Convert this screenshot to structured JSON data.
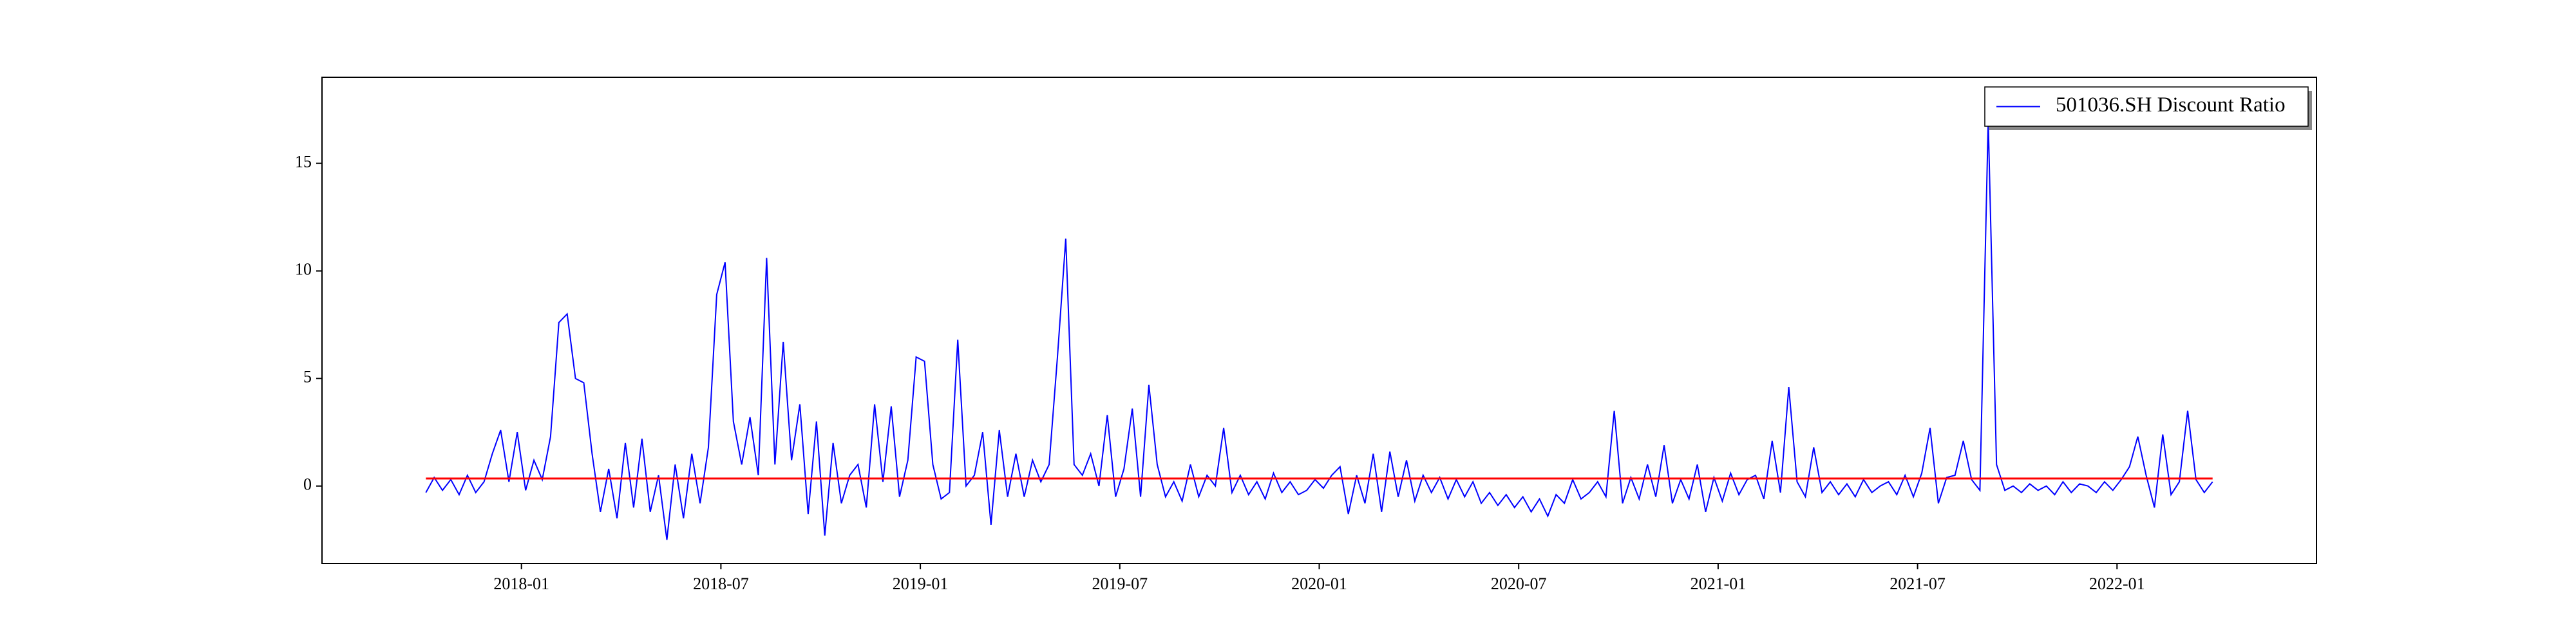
{
  "chart_data": {
    "type": "line",
    "x": [
      "2017-10",
      "2017-11",
      "2017-12",
      "2018-01",
      "2018-02",
      "2018-03",
      "2018-04",
      "2018-05",
      "2018-06",
      "2018-07",
      "2018-08",
      "2018-09",
      "2018-10",
      "2018-11",
      "2018-12",
      "2019-01",
      "2019-02",
      "2019-03",
      "2019-04",
      "2019-05",
      "2019-06",
      "2019-07",
      "2019-08",
      "2019-09",
      "2019-10",
      "2019-11",
      "2019-12",
      "2020-01",
      "2020-02",
      "2020-03",
      "2020-04",
      "2020-05",
      "2020-06",
      "2020-07",
      "2020-08",
      "2020-09",
      "2020-10",
      "2020-11",
      "2020-12",
      "2021-01",
      "2021-02",
      "2021-03",
      "2021-04",
      "2021-05",
      "2021-06",
      "2021-07",
      "2021-08",
      "2021-09",
      "2021-10",
      "2021-11",
      "2021-12",
      "2022-01",
      "2022-02",
      "2022-03"
    ],
    "series": [
      {
        "name": "501036.SH Discount Ratio",
        "color": "#0000ff",
        "values": [
          [
            -0.3,
            0.4,
            -0.2,
            0.3
          ],
          [
            -0.4,
            0.5,
            -0.3,
            0.2
          ],
          [
            1.5,
            2.6,
            0.2,
            2.5
          ],
          [
            -0.2,
            1.2,
            0.3,
            2.3
          ],
          [
            7.6,
            8.0,
            5.0,
            4.8
          ],
          [
            1.5,
            -1.2,
            0.8,
            -1.5
          ],
          [
            2.0,
            -1.0,
            2.2,
            -1.2
          ],
          [
            0.5,
            -2.5,
            1.0,
            -1.5
          ],
          [
            1.5,
            -0.8,
            1.8,
            8.9
          ],
          [
            10.4,
            3.0,
            1.0,
            3.2
          ],
          [
            0.5,
            10.6,
            1.0,
            6.7
          ],
          [
            1.2,
            3.8,
            -1.3,
            3.0
          ],
          [
            -2.3,
            2.0,
            -0.8,
            0.5
          ],
          [
            1.0,
            -1.0,
            3.8,
            0.2
          ],
          [
            3.7,
            -0.5,
            1.2,
            6.0
          ],
          [
            5.8,
            1.0,
            -0.6,
            -0.3
          ],
          [
            6.8,
            0.0,
            0.5,
            2.5
          ],
          [
            -1.8,
            2.6,
            -0.5,
            1.5
          ],
          [
            -0.5,
            1.2,
            0.2,
            1.0
          ],
          [
            6.0,
            11.5,
            1.0,
            0.5
          ],
          [
            1.5,
            0.0,
            3.3,
            -0.5
          ],
          [
            0.8,
            3.6,
            -0.5,
            4.7
          ],
          [
            1.0,
            -0.5,
            0.2,
            -0.7
          ],
          [
            1.0,
            -0.5,
            0.5,
            0.0
          ],
          [
            2.7,
            -0.3,
            0.5,
            -0.4
          ],
          [
            0.2,
            -0.6,
            0.6,
            -0.3
          ],
          [
            0.2,
            -0.4,
            -0.2,
            0.3
          ],
          [
            -0.1,
            0.5,
            0.9,
            -1.3
          ],
          [
            0.5,
            -0.8,
            1.5,
            -1.2
          ],
          [
            1.6,
            -0.5,
            1.2,
            -0.7
          ],
          [
            0.5,
            -0.3,
            0.4,
            -0.6
          ],
          [
            0.3,
            -0.5,
            0.2,
            -0.8
          ],
          [
            -0.3,
            -0.9,
            -0.4,
            -1.0
          ],
          [
            -0.5,
            -1.2,
            -0.6,
            -1.4
          ],
          [
            -0.4,
            -0.8,
            0.3,
            -0.6
          ],
          [
            -0.3,
            0.2,
            -0.5,
            3.5
          ],
          [
            -0.8,
            0.4,
            -0.6,
            1.0
          ],
          [
            -0.5,
            1.9,
            -0.8,
            0.3
          ],
          [
            -0.6,
            1.0,
            -1.2,
            0.4
          ],
          [
            -0.7,
            0.6,
            -0.4,
            0.3
          ],
          [
            0.5,
            -0.6,
            2.1,
            -0.3
          ],
          [
            4.6,
            0.2,
            -0.5,
            1.8
          ],
          [
            -0.3,
            0.2,
            -0.4,
            0.1
          ],
          [
            -0.5,
            0.3,
            -0.3,
            0.0
          ],
          [
            0.2,
            -0.4,
            0.5,
            -0.5
          ],
          [
            0.6,
            2.7,
            -0.8,
            0.4
          ],
          [
            0.5,
            2.1,
            0.3,
            -0.2
          ],
          [
            17.0,
            1.0,
            -0.2,
            0.0
          ],
          [
            -0.3,
            0.1,
            -0.2,
            0.0
          ],
          [
            -0.4,
            0.2,
            -0.3,
            0.1
          ],
          [
            0.0,
            -0.3,
            0.2,
            -0.2
          ],
          [
            0.3,
            0.9,
            2.3,
            0.5
          ],
          [
            -1.0,
            2.4,
            -0.4,
            0.2
          ],
          [
            3.5,
            0.3,
            -0.3,
            0.2
          ]
        ]
      }
    ],
    "mean_line": {
      "value": 0.35,
      "color": "#ff0000"
    },
    "xlim": [
      "2017-07",
      "2022-07"
    ],
    "xticks": [
      "2018-01",
      "2018-07",
      "2019-01",
      "2019-07",
      "2020-01",
      "2020-07",
      "2021-01",
      "2021-07",
      "2022-01"
    ],
    "ylim": [
      -3.6,
      19
    ],
    "yticks": [
      0,
      5,
      10,
      15
    ],
    "legend": "upper right"
  }
}
